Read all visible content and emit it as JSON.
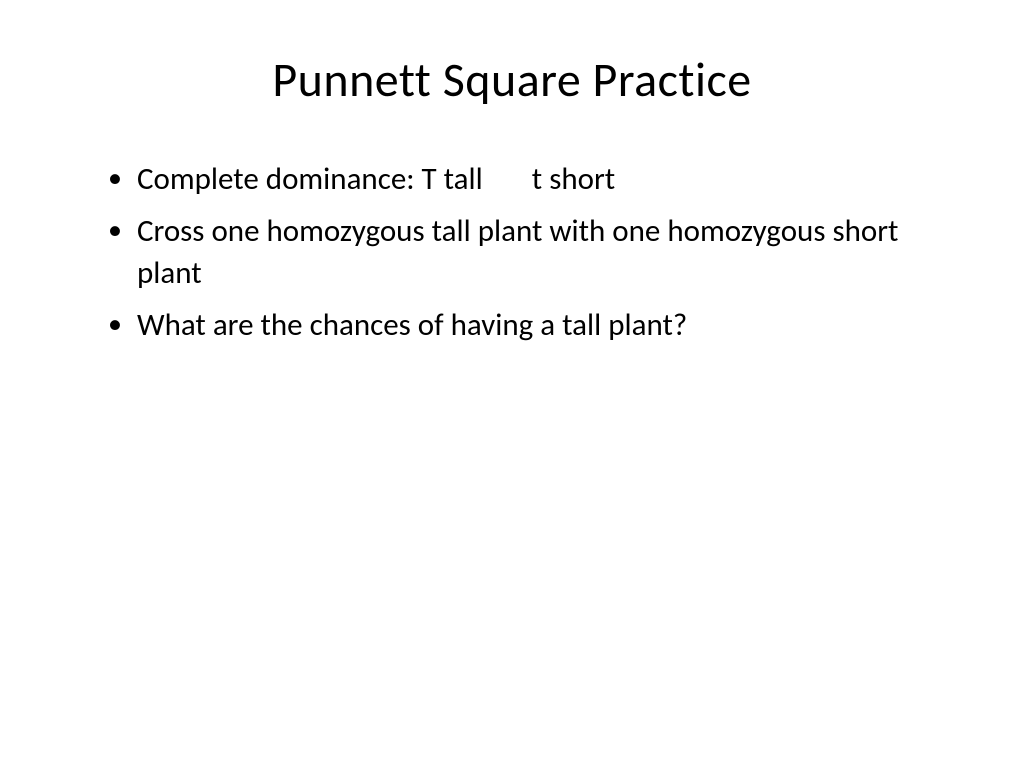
{
  "slide": {
    "title": "Punnett Square Practice",
    "bullets": [
      "Complete dominance: T tall       t short",
      "Cross one homozygous tall plant with one homozygous short plant",
      "What are the chances of having a tall plant?"
    ]
  },
  "styling": {
    "background_color": "#ffffff",
    "text_color": "#000000",
    "title_fontsize": 48,
    "body_fontsize": 31,
    "font_family": "Calibri"
  }
}
